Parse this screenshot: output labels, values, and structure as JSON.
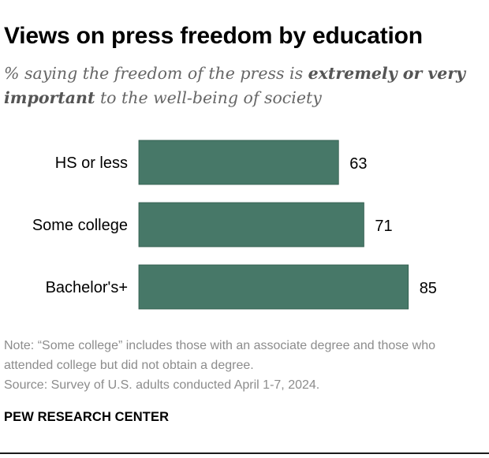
{
  "title": "Views on press freedom by education",
  "subtitle": {
    "part1": "% saying the freedom of the press is ",
    "bold": "extremely or very important",
    "part2": " to the well-being of society"
  },
  "chart_data": {
    "type": "bar",
    "orientation": "horizontal",
    "categories": [
      "HS or less",
      "Some college",
      "Bachelor's+"
    ],
    "values": [
      63,
      71,
      85
    ],
    "title": "Views on press freedom by education",
    "xlim": [
      0,
      100
    ],
    "grid": false,
    "data_labels": true,
    "bar_color": "#477868"
  },
  "note": "Note: “Some college” includes those with an associate degree and those who attended college but did not obtain a degree.",
  "source": "Source: Survey of U.S. adults conducted April 1-7, 2024.",
  "brand": "PEW RESEARCH CENTER",
  "colors": {
    "bar": "#477868",
    "note": "#8c8c8c",
    "subtitle": "#666666"
  }
}
